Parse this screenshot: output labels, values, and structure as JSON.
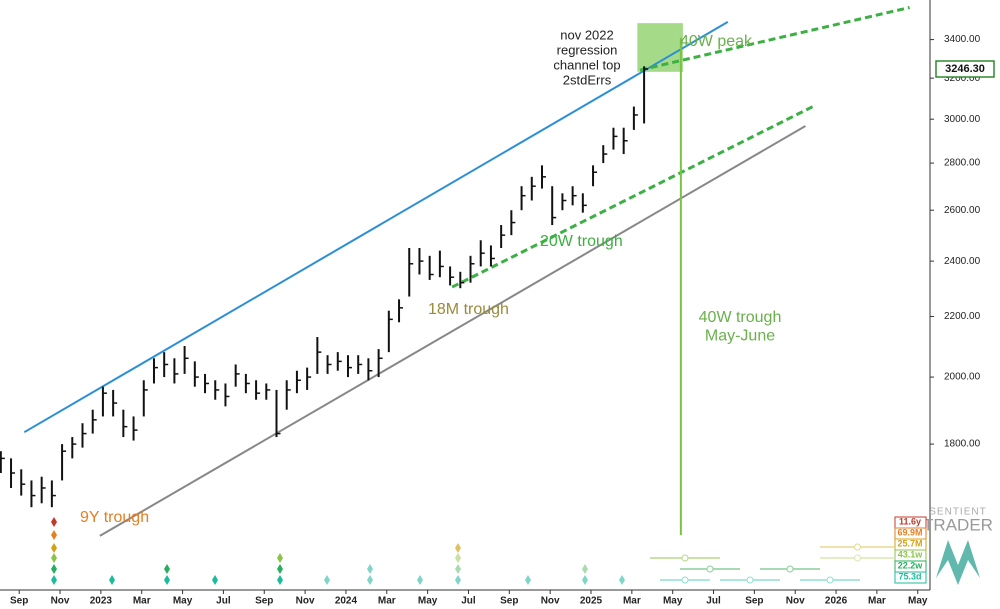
{
  "chart_data": {
    "type": "ohlc",
    "x": [
      -0.9,
      -0.4,
      0.1,
      0.6,
      1.1,
      1.6,
      2.1,
      2.6,
      3.1,
      3.6,
      4.1,
      4.6,
      5.1,
      5.6,
      6.1,
      6.6,
      7.1,
      7.6,
      8.1,
      8.6,
      9.1,
      9.6,
      10.1,
      10.6,
      11.1,
      11.6,
      12.1,
      12.6,
      13.1,
      13.6,
      14.1,
      14.6,
      15.1,
      15.6,
      16.1,
      16.6,
      17.1,
      17.6,
      18.1,
      18.6,
      19.1,
      19.6,
      20.1,
      20.6,
      21.1,
      21.6,
      22.1,
      22.6,
      23.1,
      23.6,
      24.1,
      24.6,
      25.1,
      25.6,
      26.1,
      26.6,
      27.1,
      27.6,
      28.1,
      28.6,
      29.1,
      29.6,
      30.1,
      30.6
    ],
    "high": [
      1780,
      1760,
      1730,
      1700,
      1710,
      1700,
      1800,
      1820,
      1860,
      1900,
      1970,
      1960,
      1900,
      1880,
      1990,
      2060,
      2080,
      2060,
      2100,
      2050,
      2010,
      1990,
      1980,
      2040,
      2010,
      1990,
      1980,
      1960,
      1990,
      2020,
      2030,
      2130,
      2070,
      2080,
      2070,
      2070,
      2060,
      2090,
      2220,
      2260,
      2450,
      2450,
      2420,
      2440,
      2380,
      2360,
      2420,
      2480,
      2460,
      2540,
      2600,
      2700,
      2740,
      2790,
      2700,
      2670,
      2700,
      2670,
      2790,
      2880,
      2960,
      2960,
      3060,
      3260
    ],
    "low": [
      1720,
      1680,
      1660,
      1630,
      1640,
      1630,
      1700,
      1760,
      1790,
      1830,
      1880,
      1880,
      1820,
      1810,
      1880,
      1980,
      2000,
      1980,
      2010,
      1970,
      1950,
      1930,
      1910,
      1970,
      1950,
      1930,
      1930,
      1820,
      1900,
      1950,
      1960,
      2010,
      2010,
      2020,
      2000,
      2010,
      1990,
      2000,
      2080,
      2180,
      2270,
      2350,
      2330,
      2340,
      2310,
      2300,
      2320,
      2380,
      2380,
      2450,
      2500,
      2600,
      2640,
      2690,
      2540,
      2600,
      2620,
      2590,
      2700,
      2800,
      2860,
      2840,
      2950,
      2980
    ],
    "close": [
      1760,
      1720,
      1690,
      1660,
      1680,
      1660,
      1780,
      1800,
      1830,
      1870,
      1950,
      1920,
      1850,
      1840,
      1960,
      2030,
      2040,
      2010,
      2060,
      2000,
      1980,
      1960,
      1940,
      2010,
      1980,
      1950,
      1960,
      1830,
      1960,
      1990,
      2000,
      2080,
      2040,
      2050,
      2030,
      2040,
      2020,
      2060,
      2190,
      2230,
      2390,
      2400,
      2350,
      2380,
      2340,
      2320,
      2390,
      2430,
      2410,
      2500,
      2550,
      2660,
      2700,
      2740,
      2570,
      2640,
      2660,
      2620,
      2760,
      2840,
      2920,
      2900,
      3020,
      3246.3
    ],
    "color": "#111111",
    "xlim": [
      -0.94,
      44.6
    ],
    "xticks": [
      {
        "value": 0,
        "label": "Sep"
      },
      {
        "value": 2,
        "label": "Nov"
      },
      {
        "value": 4,
        "label": "2023"
      },
      {
        "value": 6,
        "label": "Mar"
      },
      {
        "value": 8,
        "label": "May"
      },
      {
        "value": 10,
        "label": "Jul"
      },
      {
        "value": 12,
        "label": "Sep"
      },
      {
        "value": 14,
        "label": "Nov"
      },
      {
        "value": 16,
        "label": "2024"
      },
      {
        "value": 18,
        "label": "Mar"
      },
      {
        "value": 20,
        "label": "May"
      },
      {
        "value": 22,
        "label": "Jul"
      },
      {
        "value": 24,
        "label": "Sep"
      },
      {
        "value": 26,
        "label": "Nov"
      },
      {
        "value": 28,
        "label": "2025"
      },
      {
        "value": 30,
        "label": "Mar"
      },
      {
        "value": 32,
        "label": "May"
      },
      {
        "value": 34,
        "label": "Jul"
      },
      {
        "value": 36,
        "label": "Sep"
      },
      {
        "value": 38,
        "label": "Nov"
      },
      {
        "value": 40,
        "label": "2026"
      },
      {
        "value": 42,
        "label": "Mar"
      },
      {
        "value": 44,
        "label": "May"
      }
    ],
    "ylim": [
      1431,
      3590
    ],
    "log_y": true,
    "yticks": [
      {
        "value": 1800,
        "label": "1800.00"
      },
      {
        "value": 2000,
        "label": "2000.00"
      },
      {
        "value": 2200,
        "label": "2200.00"
      },
      {
        "value": 2400,
        "label": "2400.00"
      },
      {
        "value": 2600,
        "label": "2600.00"
      },
      {
        "value": 2800,
        "label": "2800.00"
      },
      {
        "value": 3000,
        "label": "3000.00"
      },
      {
        "value": 3200,
        "label": "3200.00"
      },
      {
        "value": 3400,
        "label": "3400.00"
      }
    ],
    "current_price": {
      "value": 3246.3,
      "label": "3246.30",
      "color": "#2e8b2e"
    },
    "trendlines": [
      {
        "color": "#2b8fd6",
        "dashed": false,
        "x": [
          0.25,
          34.7
        ],
        "y": [
          1834,
          3496
        ]
      },
      {
        "color": "#888888",
        "dashed": false,
        "x": [
          3.95,
          38.5
        ],
        "y": [
          1558,
          2968
        ]
      },
      {
        "color": "#3cb043",
        "dashed": true,
        "x": [
          30.4,
          43.6
        ],
        "y": [
          3241,
          3576
        ]
      },
      {
        "color": "#3cb043",
        "dashed": true,
        "x": [
          21.2,
          38.9
        ],
        "y": [
          2304,
          3062
        ]
      },
      {
        "color": "#7cc242",
        "dashed": false,
        "x": [
          32.4,
          32.4
        ],
        "y": [
          3409,
          1560
        ]
      }
    ],
    "peak_box": {
      "color": "#8fd16a",
      "x": [
        30.27,
        32.5
      ],
      "y": [
        3232,
        3489
      ]
    },
    "annotations": [
      {
        "lines": [
          "nov 2022",
          "regression",
          "channel top",
          "2stdErrs"
        ],
        "color": "#222222"
      },
      {
        "lines": [
          "40W peak"
        ],
        "color": "#6ab04c"
      },
      {
        "lines": [
          "20W trough"
        ],
        "color": "#3cb043"
      },
      {
        "lines": [
          "18M trough"
        ],
        "color": "#9a8a3a"
      },
      {
        "lines": [
          "40W trough",
          "May-June"
        ],
        "color": "#6ab04c"
      },
      {
        "lines": [
          "9Y trough"
        ],
        "color": "#e67e22"
      }
    ],
    "cycles": [
      {
        "label": "11.6y",
        "color": "#c0392b"
      },
      {
        "label": "69.9M",
        "color": "#e67e22"
      },
      {
        "label": "25.7M",
        "color": "#d4a017"
      },
      {
        "label": "43.1w",
        "color": "#8bc34a"
      },
      {
        "label": "22.2w",
        "color": "#27ae60"
      },
      {
        "label": "75.3d",
        "color": "#1abc9c"
      }
    ],
    "logo": [
      "SENTIENT",
      "TRADER"
    ]
  }
}
